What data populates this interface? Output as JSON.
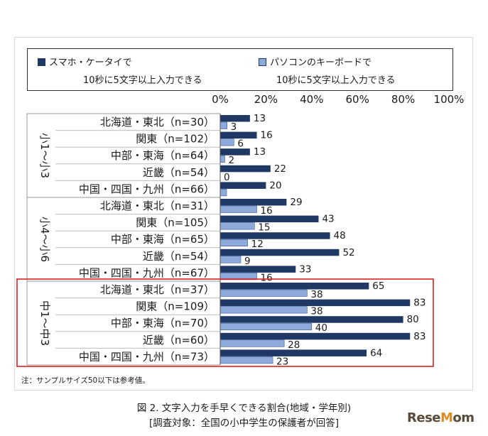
{
  "legend": {
    "smartphone_line1": "スマホ・ケータイで",
    "smartphone_line2": "10秒に5文字以上入力できる",
    "keyboard_line1": "パソコンのキーボードで",
    "keyboard_line2": "10秒に5文字以上入力できる"
  },
  "note": "注：サンプルサイズ50以下は参考値。",
  "caption": {
    "line1": "図 2. 文字入力を手早くできる割合(地域・学年別)",
    "line2": "[調査対象：全国の小中学生の保護者が回答]"
  },
  "logo": "ReseMom",
  "colors": {
    "smartphone": "#1f3864",
    "keyboard": "#8eaadb",
    "highlight": "#e02020"
  },
  "chart_data": {
    "type": "bar",
    "orientation": "horizontal",
    "xlim": [
      0,
      100
    ],
    "x_ticks": [
      "0%",
      "20%",
      "40%",
      "60%",
      "80%",
      "100%"
    ],
    "groups": [
      {
        "name": "小1～小3",
        "categories": [
          "北海道・東北（n=30）",
          "関東（n=102）",
          "中部・東海（n=64）",
          "近畿（n=54）",
          "中国・四国・九州（n=66）"
        ],
        "smartphone": [
          13,
          16,
          13,
          22,
          20
        ],
        "keyboard": [
          3,
          6,
          2,
          0,
          null
        ]
      },
      {
        "name": "小4～小6",
        "categories": [
          "北海道・東北（n=31）",
          "関東（n=105）",
          "中部・東海（n=65）",
          "近畿（n=54）",
          "中国・四国・九州（n=67）"
        ],
        "smartphone": [
          29,
          43,
          48,
          52,
          33
        ],
        "keyboard": [
          16,
          15,
          12,
          9,
          16
        ]
      },
      {
        "name": "中1～中3",
        "categories": [
          "北海道・東北（n=37）",
          "関東（n=109）",
          "中部・東海（n=70）",
          "近畿（n=60）",
          "中国・四国・九州（n=73）"
        ],
        "smartphone": [
          65,
          83,
          80,
          83,
          64
        ],
        "keyboard": [
          38,
          38,
          40,
          28,
          23
        ]
      }
    ],
    "series": [
      {
        "name": "スマホ・ケータイで10秒に5文字以上入力できる"
      },
      {
        "name": "パソコンのキーボードで10秒に5文字以上入力できる"
      }
    ],
    "highlighted_group": "中1～中3"
  }
}
